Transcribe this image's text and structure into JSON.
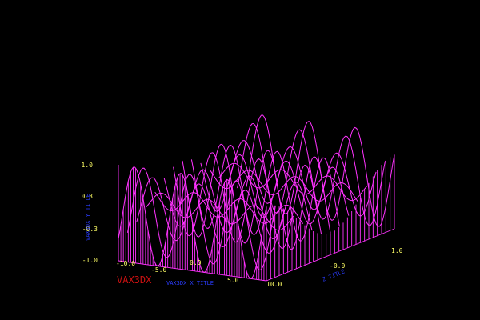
{
  "chart_data": {
    "type": "surface",
    "brand_label": "VAX3DX",
    "x_title": "VAX3DX X TITLE",
    "y_title": "VAX3DX Y TITLE",
    "z_title": "Z TITLE",
    "x_ticks": [
      "-10.0",
      "-5.0",
      "0.0",
      "5.0",
      "10.0"
    ],
    "y_ticks": [
      "1.0",
      "0.3",
      "-0.3",
      "-1.0"
    ],
    "z_ticks": [
      "-0.0",
      "1.0"
    ],
    "x_range": [
      -10,
      10
    ],
    "y_range": [
      -1,
      1
    ],
    "z_range": [
      -1,
      1
    ],
    "function": "sin(x) * cos(z)",
    "colors": {
      "background": "#000000",
      "mesh": "#ff33ff",
      "tick_labels": "#ffff66",
      "axis_titles": "#2a3cff",
      "brand": "#cc1111"
    }
  }
}
